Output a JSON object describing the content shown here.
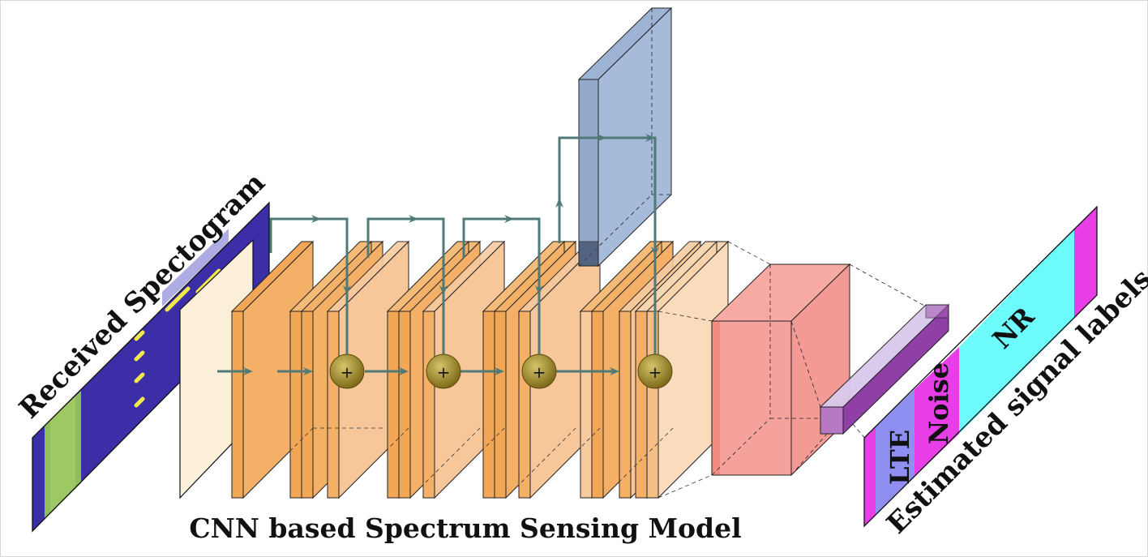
{
  "diagram": {
    "title": "CNN based Spectrum Sensing Model",
    "input_label": "Received Spectogram",
    "output_label": "Estimated signal labels",
    "output_segments": [
      {
        "label": "",
        "color": "#e83ee8"
      },
      {
        "label": "LTE",
        "color": "#8f8ff2"
      },
      {
        "label": "Noise",
        "color": "#e83ee8"
      },
      {
        "label": "NR",
        "color": "#6cfafa"
      },
      {
        "label": "",
        "color": "#e83ee8"
      }
    ],
    "add_symbol": "+",
    "colors": {
      "orange_layer": "#f4b066",
      "light_layer": "#fcebcf",
      "blue_block": "#a6bbd9",
      "red_block": "#f6a29c",
      "purple_block": "#a65bb5",
      "arrow": "#4f7a78",
      "add_node": "#8f7a21"
    }
  }
}
